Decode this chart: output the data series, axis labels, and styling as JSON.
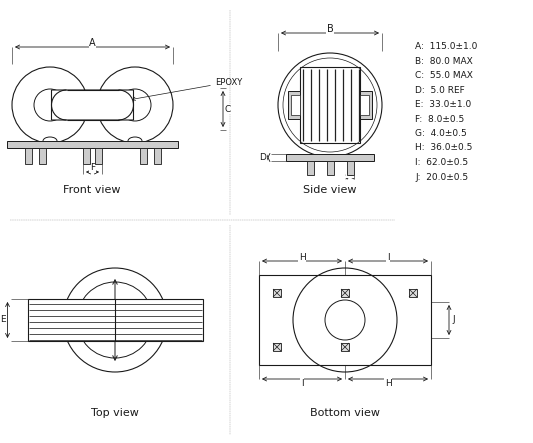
{
  "bg_color": "#ffffff",
  "line_color": "#1a1a1a",
  "specs": [
    "A:  115.0±1.0",
    "B:  80.0 MAX",
    "C:  55.0 MAX",
    "D:  5.0 REF",
    "E:  33.0±1.0",
    "F:  8.0±0.5",
    "G:  4.0±0.5",
    "H:  36.0±0.5",
    "I:  62.0±0.5",
    "J:  20.0±0.5"
  ],
  "view_labels": [
    "Front view",
    "Side view",
    "Top view",
    "Bottom view"
  ]
}
